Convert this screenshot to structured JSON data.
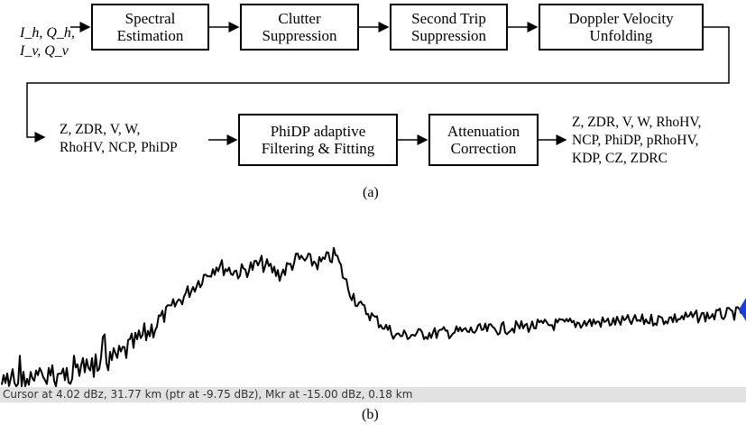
{
  "diagram": {
    "inputs_line1": "I_h, Q_h,",
    "inputs_line2": "I_v, Q_v",
    "boxes": [
      {
        "label": "Spectral\nEstimation"
      },
      {
        "label": "Clutter\nSuppression"
      },
      {
        "label": "Second Trip\nSuppression"
      },
      {
        "label": "Doppler Velocity\nUnfolding"
      },
      {
        "label": "PhiDP adaptive\nFiltering  & Fitting"
      },
      {
        "label": "Attenuation\nCorrection"
      }
    ],
    "mid_outputs": "Z, ZDR, V, W,\nRhoHV, NCP, PhiDP",
    "final_outputs": "Z, ZDR, V, W, RhoHV,\nNCP, PhiDP, pRhoHV,\nKDP, CZ, ZDRC",
    "caption": "(a)"
  },
  "spectrum": {
    "status": "Cursor at 4.02 dBz, 31.77 km (ptr at -9.75 dBz), Mkr at -15.00 dBz, 0.18 km",
    "marker_color": "#1a3fd6",
    "trace_color": "#000000",
    "caption": "(b)"
  }
}
